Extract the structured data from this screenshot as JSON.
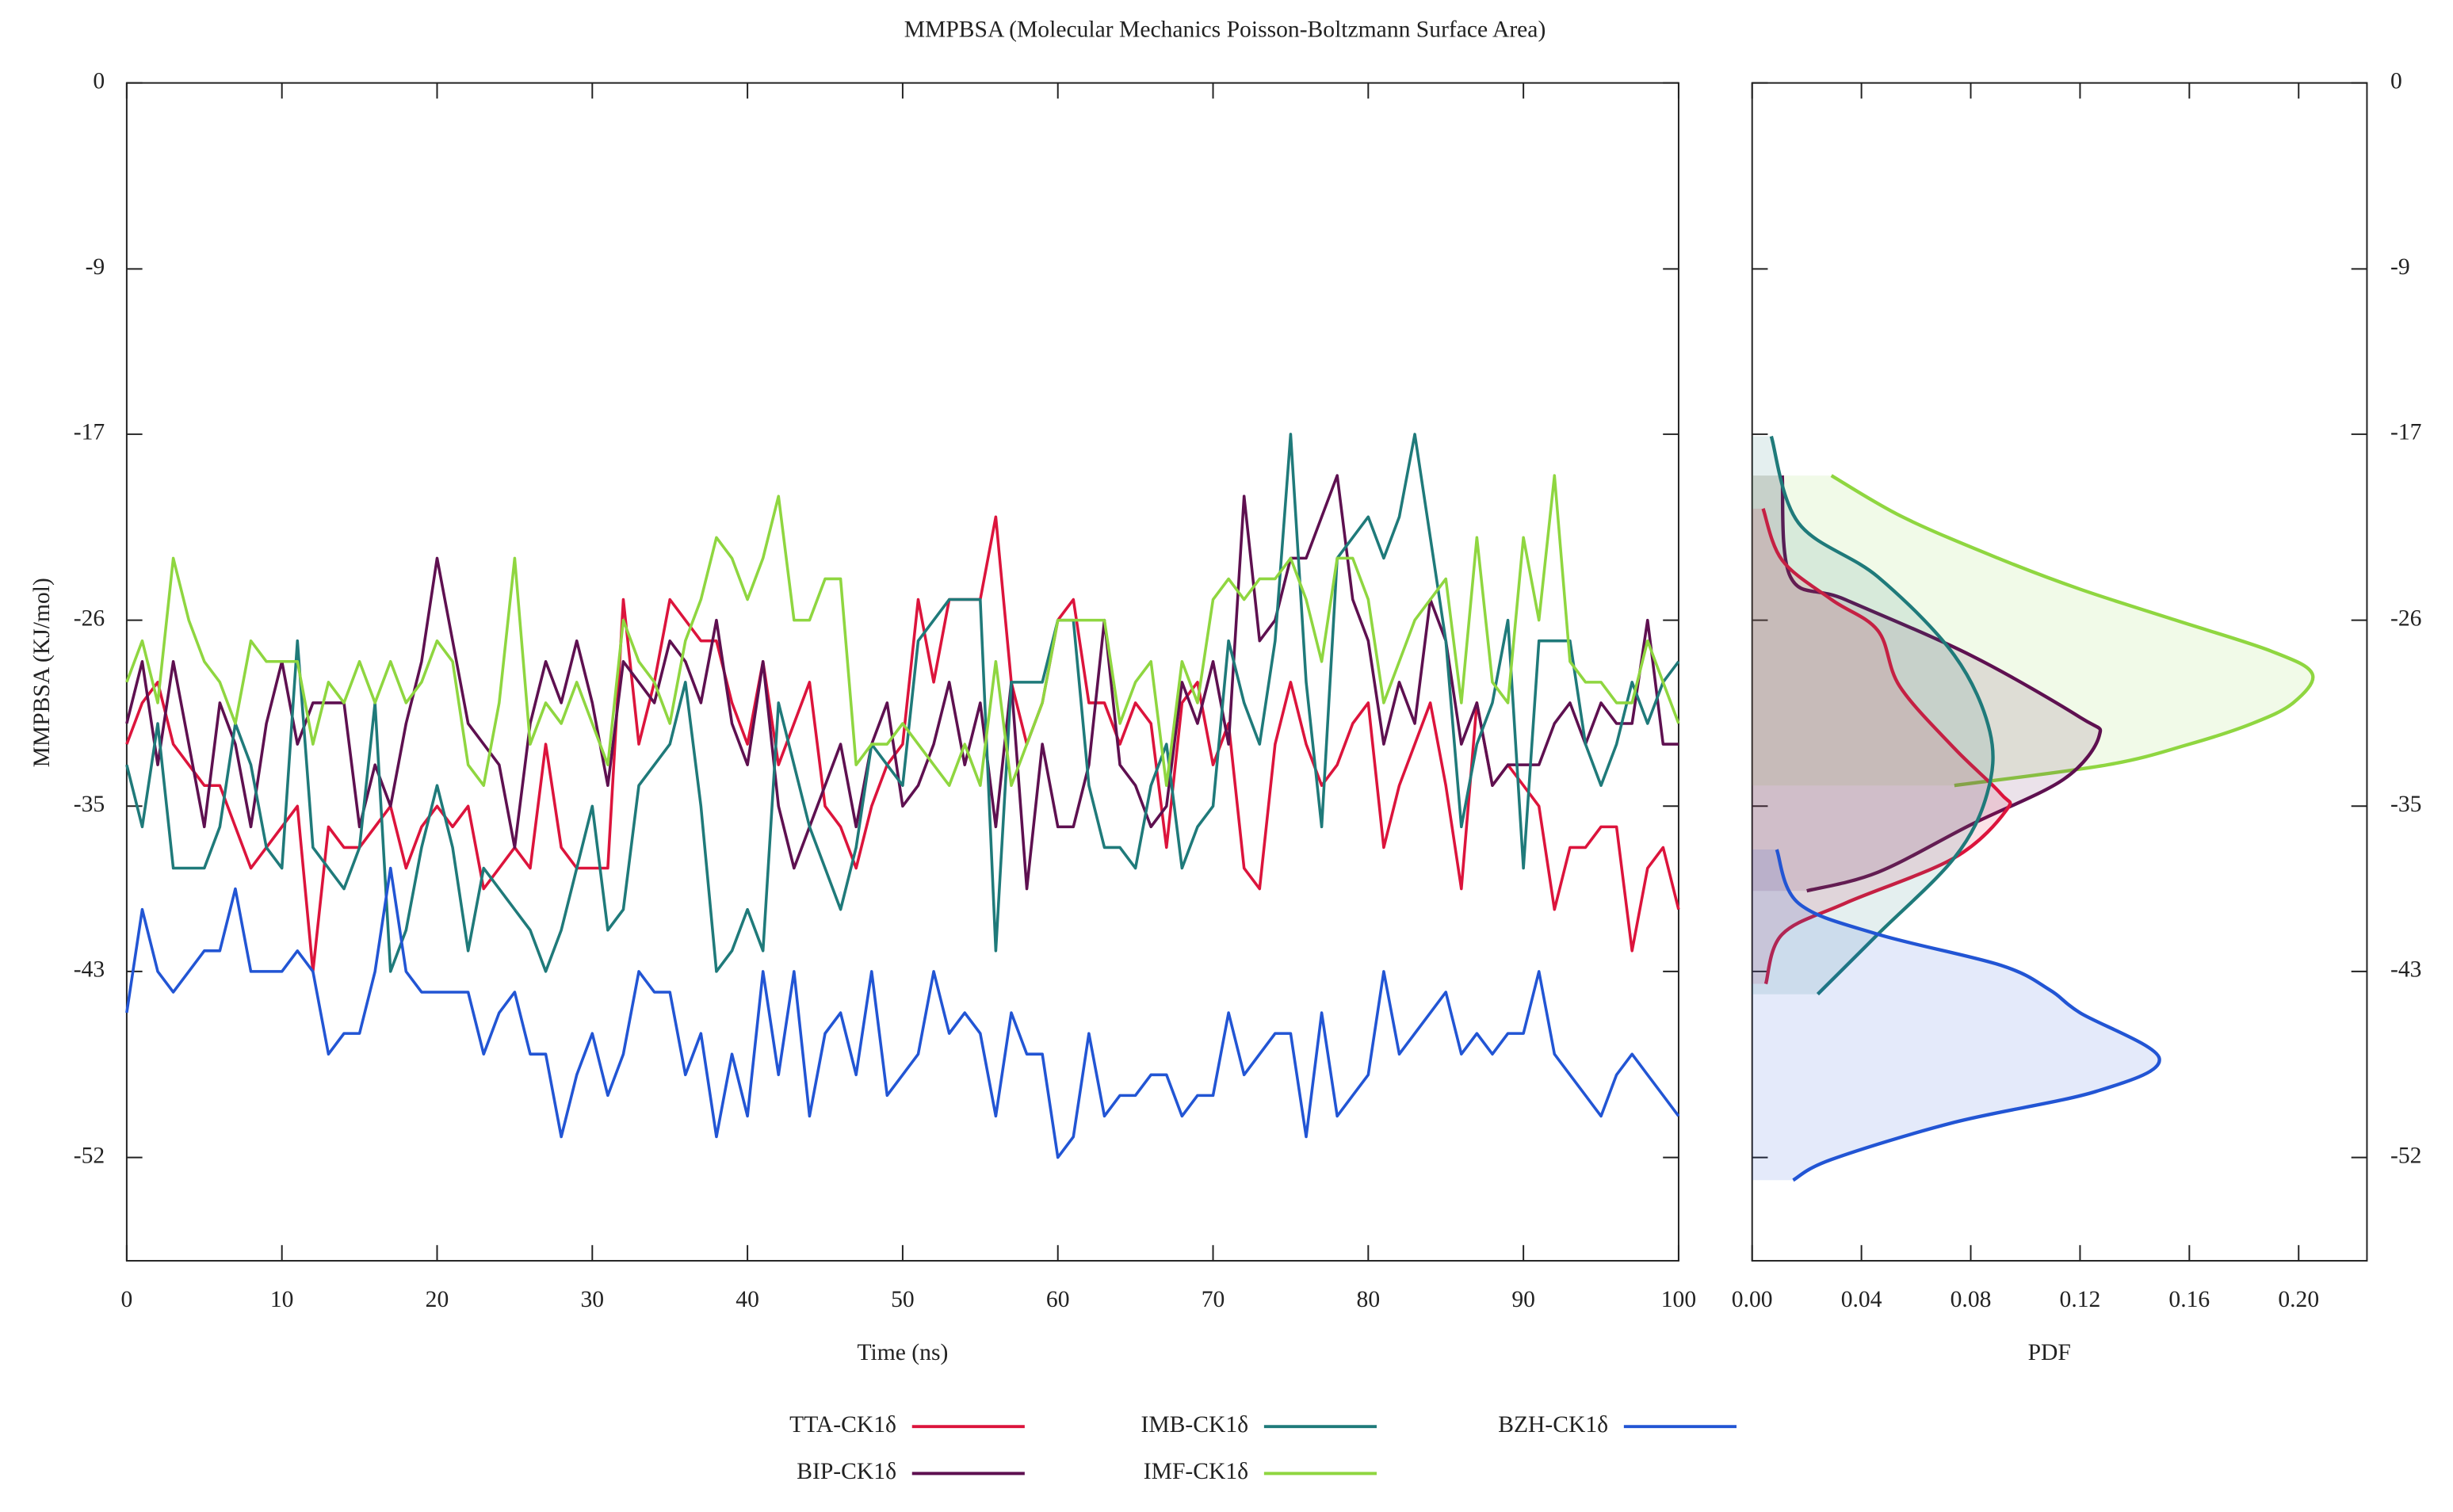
{
  "chart_data": [
    {
      "type": "line",
      "title": "MMPBSA (Molecular Mechanics Poisson-Boltzmann Surface Area)",
      "xlabel": "Time (ns)",
      "ylabel": "MMPBSA (KJ/mol)",
      "x": [
        0,
        1,
        2,
        3,
        4,
        5,
        6,
        7,
        8,
        9,
        10,
        11,
        12,
        13,
        14,
        15,
        16,
        17,
        18,
        19,
        20,
        21,
        22,
        23,
        24,
        25,
        26,
        27,
        28,
        29,
        30,
        31,
        32,
        33,
        34,
        35,
        36,
        37,
        38,
        39,
        40,
        41,
        42,
        43,
        44,
        45,
        46,
        47,
        48,
        49,
        50,
        51,
        52,
        53,
        54,
        55,
        56,
        57,
        58,
        59,
        60,
        61,
        62,
        63,
        64,
        65,
        66,
        67,
        68,
        69,
        70,
        71,
        72,
        73,
        74,
        75,
        76,
        77,
        78,
        79,
        80,
        81,
        82,
        83,
        84,
        85,
        86,
        87,
        88,
        89,
        90,
        91,
        92,
        93,
        94,
        95,
        96,
        97,
        98,
        99,
        100
      ],
      "xlim": [
        0,
        100
      ],
      "xticks": [
        0,
        10,
        20,
        30,
        40,
        50,
        60,
        70,
        80,
        90,
        100
      ],
      "ylim": [
        -57,
        0
      ],
      "yticks": [
        0,
        -9,
        -17,
        -26,
        -35,
        -43,
        -52
      ],
      "series": [
        {
          "name": "TTA-CK1δ",
          "color": "#dc143c",
          "values": [
            -32,
            -30,
            -29,
            -32,
            -33,
            -34,
            -34,
            -36,
            -38,
            -37,
            -36,
            -35,
            -43,
            -36,
            -37,
            -37,
            -36,
            -35,
            -38,
            -36,
            -35,
            -36,
            -35,
            -39,
            -38,
            -37,
            -38,
            -32,
            -37,
            -38,
            -38,
            -38,
            -25,
            -32,
            -29,
            -25,
            -26,
            -27,
            -27,
            -30,
            -32,
            -28,
            -33,
            -31,
            -29,
            -35,
            -36,
            -38,
            -35,
            -33,
            -32,
            -25,
            -29,
            -25,
            -25,
            -25,
            -21,
            -29,
            -32,
            -30,
            -26,
            -25,
            -30,
            -30,
            -32,
            -30,
            -31,
            -37,
            -30,
            -29,
            -33,
            -31,
            -38,
            -39,
            -32,
            -29,
            -32,
            -34,
            -33,
            -31,
            -30,
            -37,
            -34,
            -32,
            -30,
            -34,
            -39,
            -30,
            -34,
            -33,
            -34,
            -35,
            -40,
            -37,
            -37,
            -36,
            -36,
            -42,
            -38,
            -37,
            -40
          ]
        },
        {
          "name": "BIP-CK1δ",
          "color": "#5e1050",
          "values": [
            -31,
            -28,
            -33,
            -28,
            -32,
            -36,
            -30,
            -32,
            -36,
            -31,
            -28,
            -32,
            -30,
            -30,
            -30,
            -36,
            -33,
            -35,
            -31,
            -28,
            -23,
            -27,
            -31,
            -32,
            -33,
            -37,
            -31,
            -28,
            -30,
            -27,
            -30,
            -34,
            -28,
            -29,
            -30,
            -27,
            -28,
            -30,
            -26,
            -31,
            -33,
            -28,
            -35,
            -38,
            -36,
            -34,
            -32,
            -36,
            -32,
            -30,
            -35,
            -34,
            -32,
            -29,
            -33,
            -30,
            -36,
            -29,
            -39,
            -32,
            -36,
            -36,
            -33,
            -26,
            -33,
            -34,
            -36,
            -35,
            -29,
            -31,
            -28,
            -32,
            -20,
            -27,
            -26,
            -23,
            -23,
            -21,
            -19,
            -25,
            -27,
            -32,
            -29,
            -31,
            -25,
            -27,
            -32,
            -30,
            -34,
            -33,
            -33,
            -33,
            -31,
            -30,
            -32,
            -30,
            -31,
            -31,
            -26,
            -32,
            -32
          ]
        },
        {
          "name": "IMB-CK1δ",
          "color": "#1f7a7a",
          "values": [
            -33,
            -36,
            -31,
            -38,
            -38,
            -38,
            -36,
            -31,
            -33,
            -37,
            -38,
            -27,
            -37,
            -38,
            -39,
            -37,
            -30,
            -43,
            -41,
            -37,
            -34,
            -37,
            -42,
            -38,
            -39,
            -40,
            -41,
            -43,
            -41,
            -38,
            -35,
            -41,
            -40,
            -34,
            -33,
            -32,
            -29,
            -35,
            -43,
            -42,
            -40,
            -42,
            -30,
            -33,
            -36,
            -38,
            -40,
            -37,
            -32,
            -33,
            -34,
            -27,
            -26,
            -25,
            -25,
            -25,
            -42,
            -29,
            -29,
            -29,
            -26,
            -26,
            -34,
            -37,
            -37,
            -38,
            -34,
            -32,
            -38,
            -36,
            -35,
            -27,
            -30,
            -32,
            -27,
            -17,
            -29,
            -36,
            -23,
            -22,
            -21,
            -23,
            -21,
            -17,
            -22,
            -27,
            -36,
            -32,
            -30,
            -26,
            -38,
            -27,
            -27,
            -27,
            -32,
            -34,
            -32,
            -29,
            -31,
            -29,
            -28
          ]
        },
        {
          "name": "IMF-CK1δ",
          "color": "#8fd640",
          "values": [
            -29,
            -27,
            -30,
            -23,
            -26,
            -28,
            -29,
            -31,
            -27,
            -28,
            -28,
            -28,
            -32,
            -29,
            -30,
            -28,
            -30,
            -28,
            -30,
            -29,
            -27,
            -28,
            -33,
            -34,
            -30,
            -23,
            -32,
            -30,
            -31,
            -29,
            -31,
            -33,
            -26,
            -28,
            -29,
            -31,
            -27,
            -25,
            -22,
            -23,
            -25,
            -23,
            -20,
            -26,
            -26,
            -24,
            -24,
            -33,
            -32,
            -32,
            -31,
            -32,
            -33,
            -34,
            -32,
            -34,
            -28,
            -34,
            -32,
            -30,
            -26,
            -26,
            -26,
            -26,
            -31,
            -29,
            -28,
            -34,
            -28,
            -30,
            -25,
            -24,
            -25,
            -24,
            -24,
            -23,
            -25,
            -28,
            -23,
            -23,
            -25,
            -30,
            -28,
            -26,
            -25,
            -24,
            -30,
            -22,
            -29,
            -30,
            -22,
            -26,
            -19,
            -28,
            -29,
            -29,
            -30,
            -30,
            -27,
            -29,
            -31
          ]
        },
        {
          "name": "BZH-CK1δ",
          "color": "#2255d4",
          "values": [
            -45,
            -40,
            -43,
            -44,
            -43,
            -42,
            -42,
            -39,
            -43,
            -43,
            -43,
            -42,
            -43,
            -47,
            -46,
            -46,
            -43,
            -38,
            -43,
            -44,
            -44,
            -44,
            -44,
            -47,
            -45,
            -44,
            -47,
            -47,
            -51,
            -48,
            -46,
            -49,
            -47,
            -43,
            -44,
            -44,
            -48,
            -46,
            -51,
            -47,
            -50,
            -43,
            -48,
            -43,
            -50,
            -46,
            -45,
            -48,
            -43,
            -49,
            -48,
            -47,
            -43,
            -46,
            -45,
            -46,
            -50,
            -45,
            -47,
            -47,
            -52,
            -51,
            -46,
            -50,
            -49,
            -49,
            -48,
            -48,
            -50,
            -49,
            -49,
            -45,
            -48,
            -47,
            -46,
            -46,
            -51,
            -45,
            -50,
            -49,
            -48,
            -43,
            -47,
            -46,
            -45,
            -44,
            -47,
            -46,
            -47,
            -46,
            -46,
            -43,
            -47,
            -48,
            -49,
            -50,
            -48,
            -47,
            -48,
            -49,
            -50
          ]
        }
      ]
    },
    {
      "type": "density",
      "xlabel": "PDF",
      "xlim": [
        0,
        0.225
      ],
      "xticks": [
        {
          "value": 0,
          "label": "0.00"
        },
        {
          "value": 0.04,
          "label": "0.04"
        },
        {
          "value": 0.08,
          "label": "0.08"
        },
        {
          "value": 0.12,
          "label": "0.12"
        },
        {
          "value": 0.16,
          "label": "0.16"
        },
        {
          "value": 0.2,
          "label": "0.20"
        }
      ],
      "ylim": [
        -57,
        0
      ],
      "yticks": [
        0,
        -9,
        -17,
        -26,
        -35,
        -43,
        -52
      ],
      "series": [
        {
          "color": "#8fd640",
          "y": [
            -19,
            -21,
            -23,
            -24.5,
            -26,
            -27.5,
            -28.6,
            -30,
            -31,
            -32,
            -33,
            -34
          ],
          "values": [
            0.029,
            0.055,
            0.09,
            0.12,
            0.155,
            0.19,
            0.205,
            0.198,
            0.183,
            0.16,
            0.13,
            0.074
          ]
        },
        {
          "color": "#5e1050",
          "y": [
            -19,
            -23.9,
            -25,
            -27.7,
            -30.7,
            -31.6,
            -33.7,
            -35.9,
            -38.2,
            -39.1
          ],
          "values": [
            0.011,
            0.014,
            0.034,
            0.08,
            0.12,
            0.127,
            0.114,
            0.08,
            0.046,
            0.02
          ]
        },
        {
          "color": "#dc143c",
          "y": [
            -20.6,
            -23.1,
            -25,
            -26.5,
            -29.2,
            -32.2,
            -34.4,
            -35.2,
            -37.5,
            -39.7,
            -41.2,
            -43.6
          ],
          "values": [
            0.004,
            0.011,
            0.029,
            0.046,
            0.054,
            0.074,
            0.091,
            0.093,
            0.074,
            0.034,
            0.011,
            0.005
          ]
        },
        {
          "color": "#1f7a7a",
          "y": [
            -17.1,
            -21.3,
            -23.9,
            -27.7,
            -31.4,
            -34.4,
            -37.5,
            -41.2,
            -44.1
          ],
          "values": [
            0.007,
            0.017,
            0.046,
            0.074,
            0.087,
            0.086,
            0.074,
            0.046,
            0.024
          ]
        },
        {
          "color": "#2255d4",
          "y": [
            -37.1,
            -39.7,
            -41.2,
            -42.7,
            -43.9,
            -45,
            -47.2,
            -48.8,
            -50.3,
            -52.1,
            -53.1
          ],
          "values": [
            0.009,
            0.017,
            0.046,
            0.091,
            0.109,
            0.12,
            0.149,
            0.126,
            0.074,
            0.029,
            0.015
          ]
        }
      ]
    }
  ]
}
